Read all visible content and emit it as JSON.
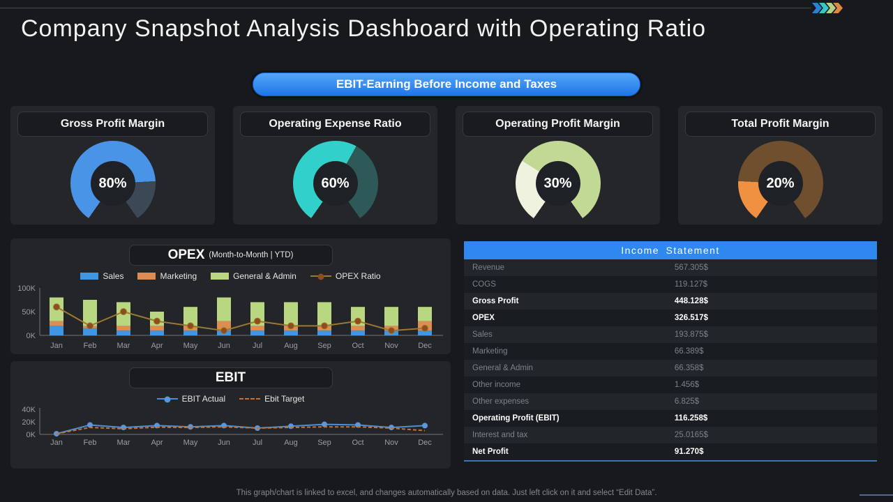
{
  "page": {
    "title": "Company Snapshot Analysis Dashboard with Operating Ratio",
    "banner": "EBIT-Earning Before Income and Taxes",
    "footer": "This graph/chart is linked to excel, and changes automatically based on data. Just left click on it and select “Edit Data”."
  },
  "decor": {
    "chevron_colors": [
      "#2e7fd8",
      "#36c9c3",
      "#b2d284",
      "#dd8a3e"
    ],
    "accent_blue": "#2f88f0"
  },
  "gauges": [
    {
      "title": "Gross Profit Margin",
      "value": 80,
      "label": "80%",
      "fill_color": "#4a94e8",
      "rest_color": "#3d4856"
    },
    {
      "title": "Operating Expense Ratio",
      "value": 60,
      "label": "60%",
      "fill_color": "#32d0ca",
      "rest_color": "#2d5a58"
    },
    {
      "title": "Operating Profit Margin",
      "value": 30,
      "label": "30%",
      "fill_color": "#eff2df",
      "rest_color": "#c2d996"
    },
    {
      "title": "Total Profit Margin",
      "value": 20,
      "label": "20%",
      "fill_color": "#ef9140",
      "rest_color": "#6f4f2e"
    }
  ],
  "chart_data": [
    {
      "type": "bar",
      "stacked": true,
      "title": "OPEX",
      "subtitle": "(Month-to-Month | YTD)",
      "categories": [
        "Jan",
        "Feb",
        "Mar",
        "Apr",
        "May",
        "Jun",
        "Jul",
        "Aug",
        "Sep",
        "Oct",
        "Nov",
        "Dec"
      ],
      "series": [
        {
          "name": "Sales",
          "color": "#3e97e5",
          "values": [
            20,
            15,
            10,
            10,
            10,
            10,
            10,
            10,
            10,
            10,
            10,
            10
          ]
        },
        {
          "name": "Marketing",
          "color": "#dd8d52",
          "values": [
            10,
            5,
            10,
            10,
            10,
            20,
            10,
            10,
            10,
            10,
            10,
            20
          ]
        },
        {
          "name": "General & Admin",
          "color": "#b9d780",
          "values": [
            50,
            55,
            50,
            30,
            40,
            50,
            50,
            50,
            50,
            40,
            40,
            30
          ]
        }
      ],
      "line_series": {
        "name": "OPEX Ratio",
        "color": "#9a7a30",
        "marker_color": "#8f4d1e",
        "values": [
          60,
          20,
          50,
          30,
          20,
          10,
          30,
          20,
          20,
          30,
          10,
          15
        ]
      },
      "ylabel": "",
      "xlabel": "",
      "ylim": [
        0,
        100
      ],
      "yticks": [
        "0K",
        "50K",
        "100K"
      ],
      "legend_position": "top"
    },
    {
      "type": "line",
      "title": "EBIT",
      "categories": [
        "Jan",
        "Feb",
        "Mar",
        "Apr",
        "May",
        "Jun",
        "Jul",
        "Aug",
        "Sep",
        "Oct",
        "Nov",
        "Dec"
      ],
      "series": [
        {
          "name": "EBIT Actual",
          "color": "#4a90d9",
          "marker_color": "#5b97dc",
          "style": "solid",
          "marker": true,
          "values": [
            1,
            15,
            11,
            14,
            12,
            14,
            10,
            13,
            16,
            15,
            11,
            14
          ]
        },
        {
          "name": "Ebit Target",
          "color": "#c9722e",
          "marker_color": "#c9722e",
          "style": "dashed",
          "marker": false,
          "values": [
            1,
            11,
            9,
            11.5,
            11,
            12,
            10,
            11,
            12,
            12,
            10,
            6
          ]
        }
      ],
      "ylabel": "",
      "xlabel": "",
      "ylim": [
        0,
        40
      ],
      "yticks": [
        "0K",
        "20K",
        "40K"
      ],
      "legend_position": "top"
    }
  ],
  "income_statement": {
    "header": "Income Statement",
    "rows": [
      {
        "label": "Revenue",
        "value": "567.305$",
        "bold": false
      },
      {
        "label": "COGS",
        "value": "119.127$",
        "bold": false
      },
      {
        "label": "Gross Profit",
        "value": "448.128$",
        "bold": true
      },
      {
        "label": "OPEX",
        "value": "326.517$",
        "bold": true
      },
      {
        "label": "Sales",
        "value": "193.875$",
        "bold": false
      },
      {
        "label": "Marketing",
        "value": "66.389$",
        "bold": false
      },
      {
        "label": "General & Admin",
        "value": "66.358$",
        "bold": false
      },
      {
        "label": "Other income",
        "value": "1.456$",
        "bold": false
      },
      {
        "label": "Other expenses",
        "value": "6.825$",
        "bold": false
      },
      {
        "label": "Operating Profit (EBIT)",
        "value": "116.258$",
        "bold": true
      },
      {
        "label": "Interest and tax",
        "value": "25.0165$",
        "bold": false
      },
      {
        "label": "Net Profit",
        "value": "91.270$",
        "bold": true
      }
    ]
  }
}
